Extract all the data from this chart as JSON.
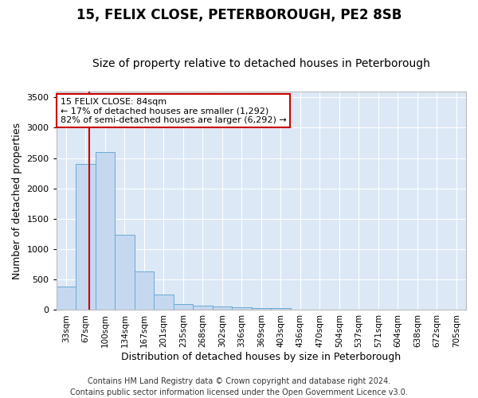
{
  "title": "15, FELIX CLOSE, PETERBOROUGH, PE2 8SB",
  "subtitle": "Size of property relative to detached houses in Peterborough",
  "xlabel": "Distribution of detached houses by size in Peterborough",
  "ylabel": "Number of detached properties",
  "footer_line1": "Contains HM Land Registry data © Crown copyright and database right 2024.",
  "footer_line2": "Contains public sector information licensed under the Open Government Licence v3.0.",
  "bar_labels": [
    "33sqm",
    "67sqm",
    "100sqm",
    "134sqm",
    "167sqm",
    "201sqm",
    "235sqm",
    "268sqm",
    "302sqm",
    "336sqm",
    "369sqm",
    "403sqm",
    "436sqm",
    "470sqm",
    "504sqm",
    "537sqm",
    "571sqm",
    "604sqm",
    "638sqm",
    "672sqm",
    "705sqm"
  ],
  "bar_values": [
    390,
    2400,
    2600,
    1240,
    635,
    255,
    100,
    65,
    60,
    45,
    35,
    30,
    0,
    0,
    0,
    0,
    0,
    0,
    0,
    0,
    0
  ],
  "bar_color": "#c5d8f0",
  "bar_edge_color": "#6aaad4",
  "red_line_x": 1.17,
  "annotation_text_line1": "15 FELIX CLOSE: 84sqm",
  "annotation_text_line2": "← 17% of detached houses are smaller (1,292)",
  "annotation_text_line3": "82% of semi-detached houses are larger (6,292) →",
  "annotation_box_color": "#ffffff",
  "annotation_box_edge": "#cc0000",
  "red_line_color": "#cc0000",
  "ylim": [
    0,
    3600
  ],
  "yticks": [
    0,
    500,
    1000,
    1500,
    2000,
    2500,
    3000,
    3500
  ],
  "bg_color": "#dce8f5",
  "grid_color": "#ffffff",
  "title_fontsize": 12,
  "subtitle_fontsize": 10,
  "axis_label_fontsize": 9,
  "tick_fontsize": 7.5,
  "footer_fontsize": 7,
  "fig_bg_color": "#ffffff"
}
